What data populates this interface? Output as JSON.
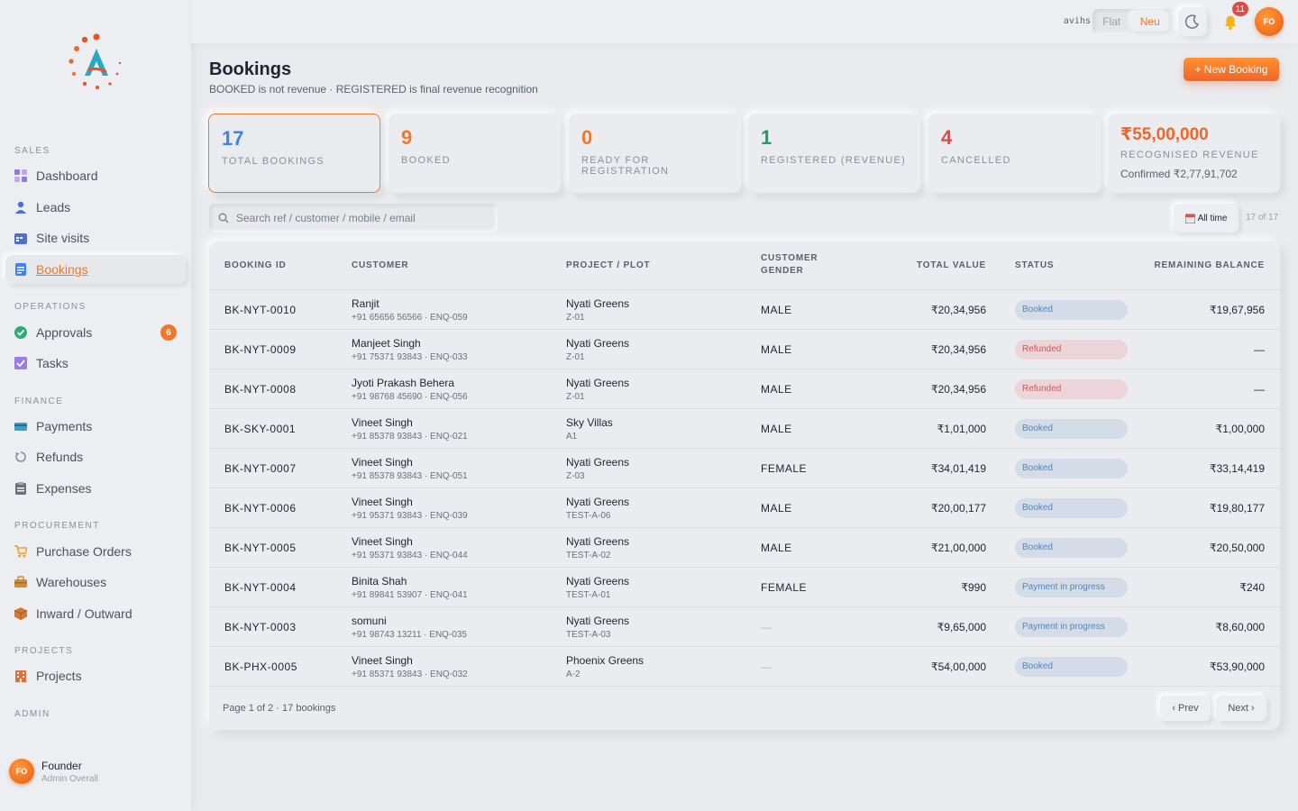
{
  "topbar": {
    "username": "avihs",
    "toggle": {
      "off_label": "Flat",
      "on_label": "Neu"
    },
    "notification_count": "11",
    "avatar_initials": "FO"
  },
  "sidebar": {
    "sections": {
      "sales": "SALES",
      "operations": "OPERATIONS",
      "finance": "FINANCE",
      "procurement": "PROCUREMENT",
      "projects": "PROJECTS",
      "admin": "ADMIN"
    },
    "items": {
      "dashboard": "Dashboard",
      "leads": "Leads",
      "site_visits": "Site visits",
      "bookings": "Bookings",
      "approvals": "Approvals",
      "approvals_badge": "6",
      "tasks": "Tasks",
      "payments": "Payments",
      "refunds": "Refunds",
      "expenses": "Expenses",
      "purchase_orders": "Purchase Orders",
      "warehouses": "Warehouses",
      "inward_outward": "Inward / Outward",
      "projects": "Projects"
    },
    "user": {
      "initials": "FO",
      "name": "Founder",
      "role": "Admin Overall"
    }
  },
  "page": {
    "title": "Bookings",
    "subtitle": "BOOKED is not revenue · REGISTERED is final revenue recognition",
    "new_button": "+ New Booking"
  },
  "stats": [
    {
      "value": "17",
      "label": "TOTAL BOOKINGS",
      "color": "#3b82f6"
    },
    {
      "value": "9",
      "label": "BOOKED",
      "color": "#f0782a"
    },
    {
      "value": "0",
      "label": "READY FOR REGISTRATION",
      "color": "#f0782a"
    },
    {
      "value": "1",
      "label": "REGISTERED (REVENUE)",
      "color": "#1f9d6b"
    },
    {
      "value": "4",
      "label": "CANCELLED",
      "color": "#e34848"
    },
    {
      "value": "₹55,00,000",
      "label": "RECOGNISED REVENUE",
      "sub": "Confirmed ₹2,77,91,702",
      "color": "#f0662a"
    }
  ],
  "filters": {
    "search_placeholder": "Search ref / customer / mobile / email",
    "period": "All time",
    "count": "17 of 17"
  },
  "table": {
    "headers": {
      "booking_id": "BOOKING ID",
      "customer": "CUSTOMER",
      "project": "PROJECT / PLOT",
      "gender_1": "CUSTOMER",
      "gender_2": "GENDER",
      "total": "TOTAL VALUE",
      "status": "STATUS",
      "remaining": "REMAINING BALANCE"
    },
    "rows": [
      {
        "id": "BK-NYT-0010",
        "name": "Ranjit",
        "contact": "+91 65656 56566 · ENQ-059",
        "project": "Nyati Greens",
        "plot": "Z-01",
        "gender": "MALE",
        "total": "₹20,34,956",
        "status": "Booked",
        "status_type": "booked",
        "remaining": "₹19,67,956"
      },
      {
        "id": "BK-NYT-0009",
        "name": "Manjeet Singh",
        "contact": "+91 75371 93843 · ENQ-033",
        "project": "Nyati Greens",
        "plot": "Z-01",
        "gender": "MALE",
        "total": "₹20,34,956",
        "status": "Refunded",
        "status_type": "refunded",
        "remaining": "—"
      },
      {
        "id": "BK-NYT-0008",
        "name": "Jyoti Prakash Behera",
        "contact": "+91 98768 45690 · ENQ-056",
        "project": "Nyati Greens",
        "plot": "Z-01",
        "gender": "MALE",
        "total": "₹20,34,956",
        "status": "Refunded",
        "status_type": "refunded",
        "remaining": "—"
      },
      {
        "id": "BK-SKY-0001",
        "name": "Vineet Singh",
        "contact": "+91 85378 93843 · ENQ-021",
        "project": "Sky Villas",
        "plot": "A1",
        "gender": "MALE",
        "total": "₹1,01,000",
        "status": "Booked",
        "status_type": "booked",
        "remaining": "₹1,00,000"
      },
      {
        "id": "BK-NYT-0007",
        "name": "Vineet Singh",
        "contact": "+91 85378 93843 · ENQ-051",
        "project": "Nyati Greens",
        "plot": "Z-03",
        "gender": "FEMALE",
        "total": "₹34,01,419",
        "status": "Booked",
        "status_type": "booked",
        "remaining": "₹33,14,419"
      },
      {
        "id": "BK-NYT-0006",
        "name": "Vineet Singh",
        "contact": "+91 95371 93843 · ENQ-039",
        "project": "Nyati Greens",
        "plot": "TEST-A-06",
        "gender": "MALE",
        "total": "₹20,00,177",
        "status": "Booked",
        "status_type": "booked",
        "remaining": "₹19,80,177"
      },
      {
        "id": "BK-NYT-0005",
        "name": "Vineet Singh",
        "contact": "+91 95371 93843 · ENQ-044",
        "project": "Nyati Greens",
        "plot": "TEST-A-02",
        "gender": "MALE",
        "total": "₹21,00,000",
        "status": "Booked",
        "status_type": "booked",
        "remaining": "₹20,50,000"
      },
      {
        "id": "BK-NYT-0004",
        "name": "Binita Shah",
        "contact": "+91 89841 53907 · ENQ-041",
        "project": "Nyati Greens",
        "plot": "TEST-A-01",
        "gender": "FEMALE",
        "total": "₹990",
        "status": "Payment in progress",
        "status_type": "progress",
        "remaining": "₹240"
      },
      {
        "id": "BK-NYT-0003",
        "name": "somuni",
        "contact": "+91 98743 13211 · ENQ-035",
        "project": "Nyati Greens",
        "plot": "TEST-A-03",
        "gender": "—",
        "total": "₹9,65,000",
        "status": "Payment in progress",
        "status_type": "progress",
        "remaining": "₹8,60,000"
      },
      {
        "id": "BK-PHX-0005",
        "name": "Vineet Singh",
        "contact": "+91 85371 93843 · ENQ-032",
        "project": "Phoenix Greens",
        "plot": "A-2",
        "gender": "—",
        "total": "₹54,00,000",
        "status": "Booked",
        "status_type": "booked",
        "remaining": "₹53,90,000"
      }
    ]
  },
  "pagination": {
    "summary": "Page 1 of 2 · 17 bookings",
    "prev": "‹ Prev",
    "next": "Next ›"
  }
}
